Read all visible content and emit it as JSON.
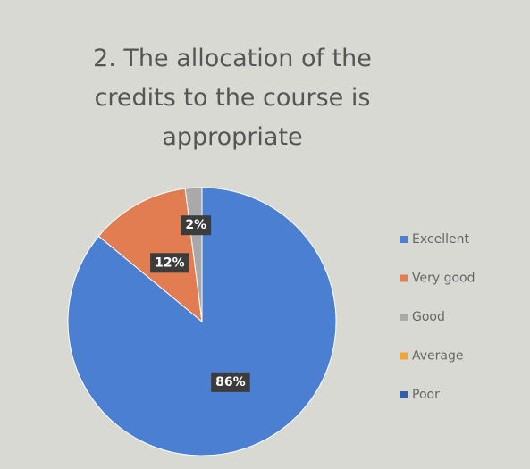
{
  "chart_data": {
    "type": "pie",
    "title": "2. The allocation of the credits to the course is appropriate",
    "categories": [
      "Excellent",
      "Very good",
      "Good",
      "Average",
      "Poor"
    ],
    "values": [
      86,
      12,
      2,
      0,
      0
    ],
    "value_labels": [
      "86%",
      "12%",
      "2%",
      null,
      null
    ],
    "colors": [
      "#4a7fd2",
      "#e27d52",
      "#a9a9a9",
      "#f2a531",
      "#2f5eb0"
    ],
    "legend": "right"
  }
}
